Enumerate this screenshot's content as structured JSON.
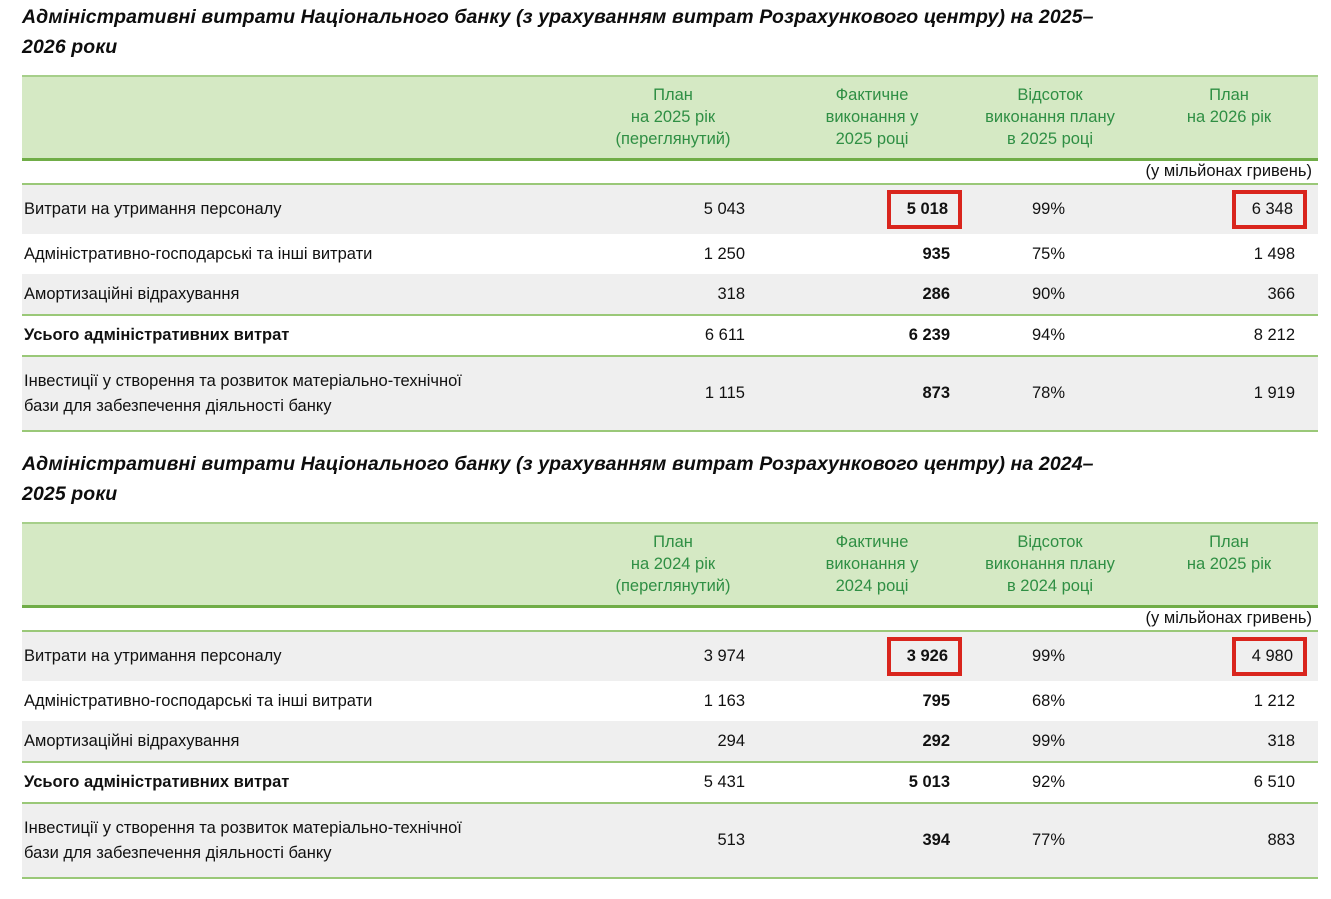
{
  "tables": [
    {
      "title": "Адміністративні витрати Національного банку (з урахуванням витрат Розрахункового центру) на 2025–\n2026 роки",
      "header": {
        "col1": "План\nна 2025 рік\n(переглянутий)",
        "col2": "Фактичне\nвиконання у\n2025 році",
        "col3": "Відсоток\nвиконання плану\nв 2025 році",
        "col4": "План\nна 2026 рік"
      },
      "units_note": "(у мільйонах гривень)",
      "rows": [
        {
          "label": "Витрати на утримання персоналу",
          "plan": "5 043",
          "actual": "5 018",
          "percent": "99%",
          "next_plan": "6 348"
        },
        {
          "label": "Адміністративно-господарські та інші витрати",
          "plan": "1 250",
          "actual": "935",
          "percent": "75%",
          "next_plan": "1 498"
        },
        {
          "label": "Амортизаційні відрахування",
          "plan": "318",
          "actual": "286",
          "percent": "90%",
          "next_plan": "366"
        },
        {
          "label": "Усього адміністративних витрат",
          "plan": "6 611",
          "actual": "6 239",
          "percent": "94%",
          "next_plan": "8 212"
        },
        {
          "label": "Інвестиції у створення та розвиток матеріально-технічної\nбази для забезпечення діяльності банку",
          "plan": "1 115",
          "actual": "873",
          "percent": "78%",
          "next_plan": "1 919"
        }
      ]
    },
    {
      "title": "Адміністративні витрати Національного банку (з урахуванням витрат Розрахункового центру) на 2024–\n2025 роки",
      "header": {
        "col1": "План\nна 2024 рік\n(переглянутий)",
        "col2": "Фактичне\nвиконання у\n2024 році",
        "col3": "Відсоток\nвиконання плану\nв 2024 році",
        "col4": "План\nна 2025 рік"
      },
      "units_note": "(у мільйонах гривень)",
      "rows": [
        {
          "label": "Витрати на утримання персоналу",
          "plan": "3 974",
          "actual": "3 926",
          "percent": "99%",
          "next_plan": "4 980"
        },
        {
          "label": "Адміністративно-господарські та інші витрати",
          "plan": "1 163",
          "actual": "795",
          "percent": "68%",
          "next_plan": "1 212"
        },
        {
          "label": "Амортизаційні відрахування",
          "plan": "294",
          "actual": "292",
          "percent": "99%",
          "next_plan": "318"
        },
        {
          "label": "Усього адміністративних витрат",
          "plan": "5 431",
          "actual": "5 013",
          "percent": "92%",
          "next_plan": "6 510"
        },
        {
          "label": "Інвестиції у створення та розвиток матеріально-технічної\nбази для забезпечення діяльності банку",
          "plan": "513",
          "actual": "394",
          "percent": "77%",
          "next_plan": "883"
        }
      ]
    }
  ]
}
